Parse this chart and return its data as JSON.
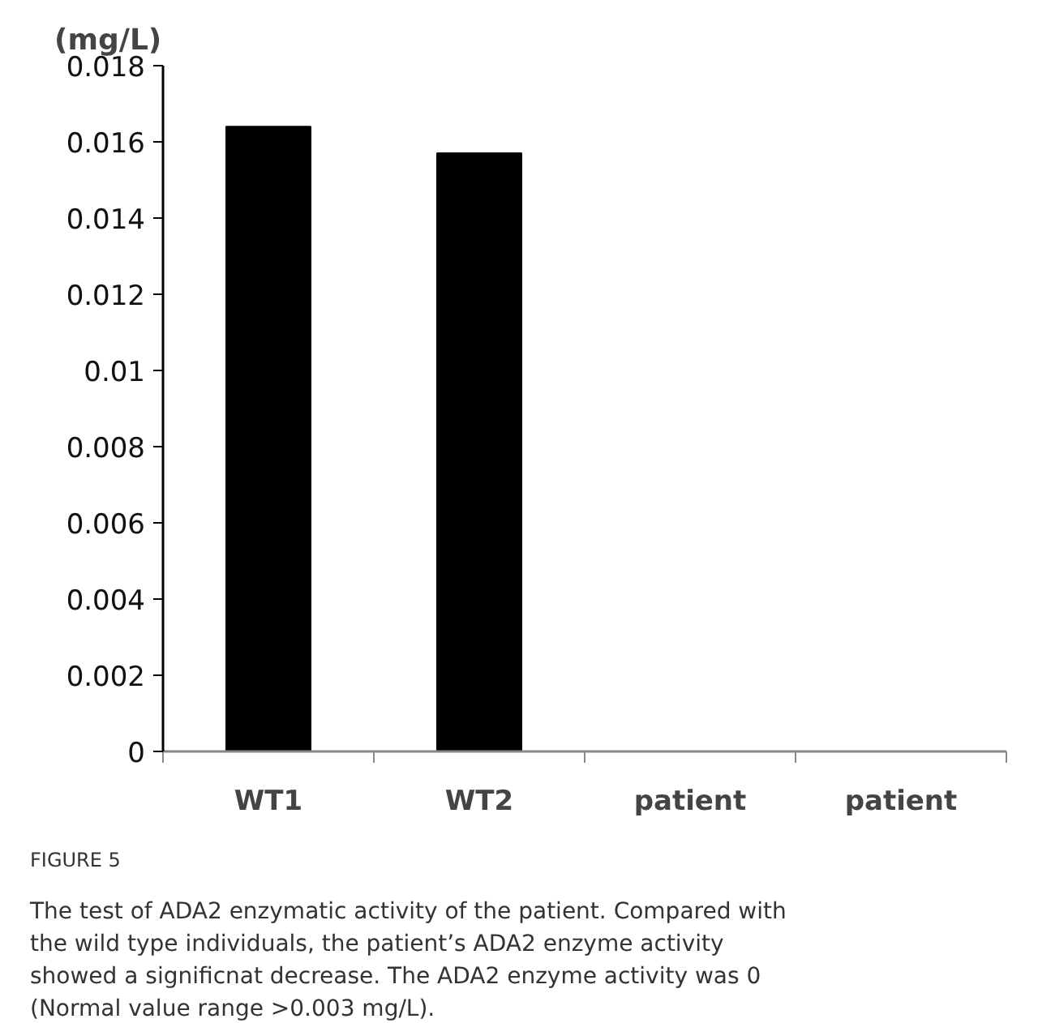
{
  "chart_data": {
    "type": "bar",
    "ylabel": "(mg/L)",
    "categories": [
      "WT1",
      "WT2",
      "patient",
      "patient"
    ],
    "values": [
      0.0164,
      0.0157,
      0,
      0
    ],
    "color": "#000000",
    "ylim": [
      0,
      0.018
    ],
    "yticks": [
      0,
      0.002,
      0.004,
      0.006,
      0.008,
      0.01,
      0.012,
      0.014,
      0.016,
      0.018
    ],
    "grid": false,
    "annotations": [
      "FIGURE 5",
      "The test of ADA2 enzymatic activity of the patient. Compared with the wild type individuals, the patient’s ADA2 enzyme activity showed a significnat decrease. The ADA2 enzyme activity was 0 (Normal value range >0.003 mg/L)."
    ]
  }
}
